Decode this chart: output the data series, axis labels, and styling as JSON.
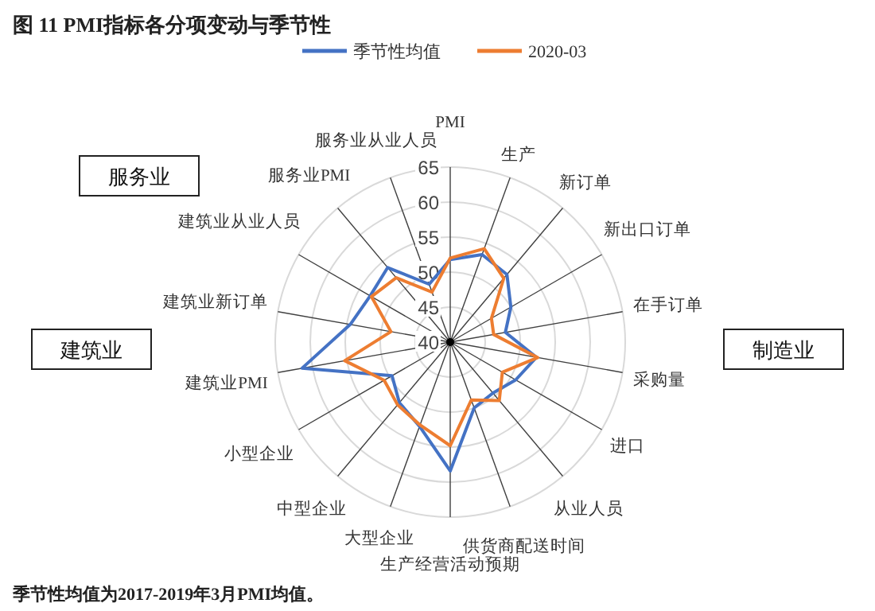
{
  "chart_data": {
    "type": "radar",
    "title": "图 11   PMI指标各分项变动与季节性",
    "categories": [
      "PMI",
      "生产",
      "新订单",
      "新出口订单",
      "在手订单",
      "采购量",
      "进口",
      "从业人员",
      "供货商配送时间",
      "生产经营活动预期",
      "大型企业",
      "中型企业",
      "小型企业",
      "建筑业PMI",
      "建筑业新订单",
      "建筑业从业人员",
      "服务业PMI",
      "服务业从业人员"
    ],
    "series": [
      {
        "name": "季节性均值",
        "color": "#4472c4",
        "values": [
          51.8,
          53.3,
          52.6,
          50.0,
          48.0,
          52.5,
          50.8,
          49.5,
          50.0,
          58.4,
          52.8,
          51.3,
          49.6,
          61.5,
          54.5,
          53.2,
          53.9,
          48.8
        ]
      },
      {
        "name": "2020-03",
        "color": "#ed7d31",
        "values": [
          52.0,
          54.2,
          51.9,
          46.8,
          46.3,
          52.7,
          48.6,
          50.9,
          48.8,
          54.8,
          52.6,
          51.7,
          50.9,
          55.3,
          48.6,
          53.0,
          52.0,
          47.6
        ]
      }
    ],
    "ylim": [
      40,
      65
    ],
    "yticks": [
      40,
      45,
      50,
      55,
      60,
      65
    ],
    "grid": true,
    "legend": "top",
    "annotations": [
      "服务业",
      "建筑业",
      "制造业",
      "季节性均值为2017-2019年3月PMI均值。"
    ]
  }
}
